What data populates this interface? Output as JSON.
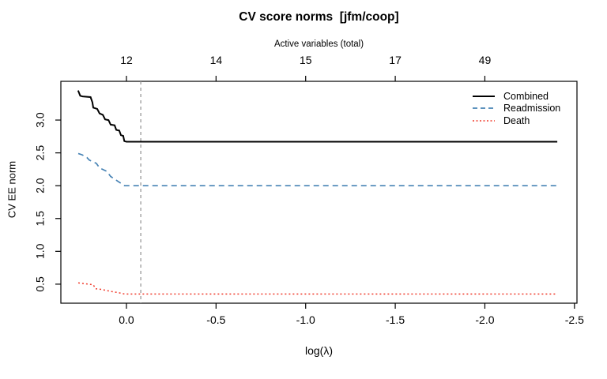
{
  "chart_data": {
    "type": "line",
    "title": "CV score norms  [jfm/coop]",
    "top_axis_label": "Active variables (total)",
    "xlabel": "log(λ)",
    "ylabel": "CV EE norm",
    "x_axis_reversed": true,
    "xlim": [
      0.366,
      -2.514
    ],
    "ylim": [
      0.21,
      3.59
    ],
    "grid": false,
    "legend_position": "top-right",
    "top_axis_ticks": [
      {
        "v": 0.0,
        "label": "12"
      },
      {
        "v": -0.5,
        "label": "14"
      },
      {
        "v": -1.0,
        "label": "15"
      },
      {
        "v": -1.5,
        "label": "17"
      },
      {
        "v": -2.0,
        "label": "49"
      }
    ],
    "x_ticks": [
      {
        "v": 0.0,
        "label": "0.0"
      },
      {
        "v": -0.5,
        "label": "-0.5"
      },
      {
        "v": -1.0,
        "label": "-1.0"
      },
      {
        "v": -1.5,
        "label": "-1.5"
      },
      {
        "v": -2.0,
        "label": "-2.0"
      },
      {
        "v": -2.5,
        "label": "-2.5"
      }
    ],
    "y_ticks": [
      {
        "v": 0.5,
        "label": "0.5"
      },
      {
        "v": 1.0,
        "label": "1.0"
      },
      {
        "v": 1.5,
        "label": "1.5"
      },
      {
        "v": 2.0,
        "label": "2.0"
      },
      {
        "v": 2.5,
        "label": "2.5"
      },
      {
        "v": 3.0,
        "label": "3.0"
      }
    ],
    "vline": {
      "x": -0.08,
      "color": "#999999",
      "style": "dashed"
    },
    "series": [
      {
        "name": "Combined",
        "color": "#000000",
        "style": "solid",
        "width": 2,
        "points": [
          [
            0.27,
            3.45
          ],
          [
            0.258,
            3.37
          ],
          [
            0.245,
            3.36
          ],
          [
            0.2,
            3.35
          ],
          [
            0.19,
            3.27
          ],
          [
            0.185,
            3.19
          ],
          [
            0.163,
            3.17
          ],
          [
            0.15,
            3.1
          ],
          [
            0.132,
            3.08
          ],
          [
            0.119,
            3.01
          ],
          [
            0.1,
            3.0
          ],
          [
            0.088,
            2.93
          ],
          [
            0.066,
            2.92
          ],
          [
            0.057,
            2.85
          ],
          [
            0.04,
            2.84
          ],
          [
            0.031,
            2.77
          ],
          [
            0.018,
            2.76
          ],
          [
            0.012,
            2.68
          ],
          [
            0.0,
            2.67
          ],
          [
            -2.404,
            2.67
          ]
        ]
      },
      {
        "name": "Readmission",
        "color": "#4682B4",
        "style": "dashed",
        "width": 1.7,
        "points": [
          [
            0.269,
            2.49
          ],
          [
            0.247,
            2.47
          ],
          [
            0.221,
            2.43
          ],
          [
            0.207,
            2.39
          ],
          [
            0.168,
            2.34
          ],
          [
            0.15,
            2.27
          ],
          [
            0.11,
            2.22
          ],
          [
            0.088,
            2.14
          ],
          [
            0.044,
            2.06
          ],
          [
            0.01,
            2.0
          ],
          [
            -2.404,
            2.0
          ]
        ]
      },
      {
        "name": "Death",
        "color": "#F03B2C",
        "style": "dotted",
        "width": 1.5,
        "points": [
          [
            0.269,
            0.52
          ],
          [
            0.185,
            0.49
          ],
          [
            0.172,
            0.43
          ],
          [
            0.141,
            0.42
          ],
          [
            0.088,
            0.39
          ],
          [
            0.044,
            0.37
          ],
          [
            0.01,
            0.35
          ],
          [
            -2.404,
            0.35
          ]
        ]
      }
    ]
  }
}
